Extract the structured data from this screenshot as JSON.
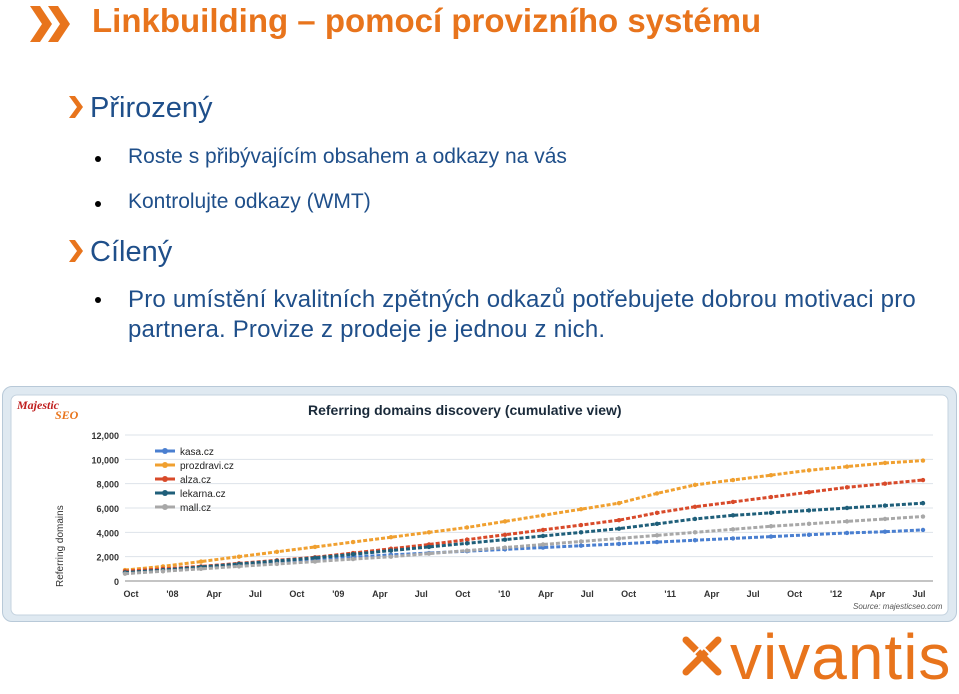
{
  "slide": {
    "title": "Linkbuilding – pomocí provizního systému",
    "section1": {
      "heading": "Přirozený",
      "bullets": [
        "Roste s přibývajícím obsahem a odkazy na vás",
        "Kontrolujte  odkazy (WMT)"
      ]
    },
    "section2": {
      "heading": "Cílený",
      "paragraph": "Pro umístění kvalitních zpětných odkazů potřebujete dobrou motivaci pro partnera. Provize z prodeje je jednou z nich."
    },
    "brand": "vivantis",
    "colors": {
      "title": "#e8741c",
      "text": "#1f4f8a",
      "brand": "#e8741c"
    }
  },
  "chart_data": {
    "type": "line",
    "badge": "Majestic SEO",
    "title": "Referring domains discovery (cumulative view)",
    "ylabel": "Referring domains",
    "xlabel": "",
    "source": "Source: majesticseo.com",
    "ylim": [
      0,
      12000
    ],
    "yticks": [
      "0",
      "2,000",
      "4,000",
      "6,000",
      "8,000",
      "10,000",
      "12,000"
    ],
    "xticks": [
      "Oct",
      "'08",
      "Apr",
      "Jul",
      "Oct",
      "'09",
      "Apr",
      "Jul",
      "Oct",
      "'10",
      "Apr",
      "Jul",
      "Oct",
      "'11",
      "Apr",
      "Jul",
      "Oct",
      "'12",
      "Apr",
      "Jul"
    ],
    "grid": true,
    "legend_position": "top-left",
    "series": [
      {
        "name": "kasa.cz",
        "color": "#4a7fd0",
        "values": [
          700,
          900,
          1100,
          1350,
          1550,
          1750,
          1950,
          2150,
          2300,
          2450,
          2600,
          2750,
          2900,
          3050,
          3200,
          3350,
          3500,
          3650,
          3800,
          3950,
          4050,
          4200
        ]
      },
      {
        "name": "prozdravi.cz",
        "color": "#f0a030",
        "values": [
          900,
          1200,
          1600,
          2000,
          2400,
          2800,
          3200,
          3600,
          4000,
          4400,
          4900,
          5400,
          5900,
          6400,
          7200,
          7900,
          8300,
          8700,
          9100,
          9400,
          9700,
          9900
        ]
      },
      {
        "name": "alza.cz",
        "color": "#d84a2a",
        "values": [
          800,
          1000,
          1200,
          1450,
          1700,
          1950,
          2300,
          2650,
          3000,
          3400,
          3800,
          4200,
          4600,
          5000,
          5600,
          6100,
          6500,
          6900,
          7300,
          7700,
          8000,
          8300
        ]
      },
      {
        "name": "lekarna.cz",
        "color": "#1f5f7a",
        "values": [
          700,
          900,
          1150,
          1400,
          1650,
          1900,
          2200,
          2500,
          2800,
          3100,
          3400,
          3700,
          4000,
          4300,
          4700,
          5100,
          5400,
          5600,
          5800,
          6000,
          6200,
          6400
        ]
      },
      {
        "name": "mall.cz",
        "color": "#a8a8a8",
        "values": [
          600,
          800,
          1000,
          1200,
          1400,
          1600,
          1800,
          2000,
          2250,
          2500,
          2750,
          3000,
          3250,
          3500,
          3750,
          4000,
          4250,
          4500,
          4700,
          4900,
          5100,
          5300
        ]
      }
    ]
  }
}
